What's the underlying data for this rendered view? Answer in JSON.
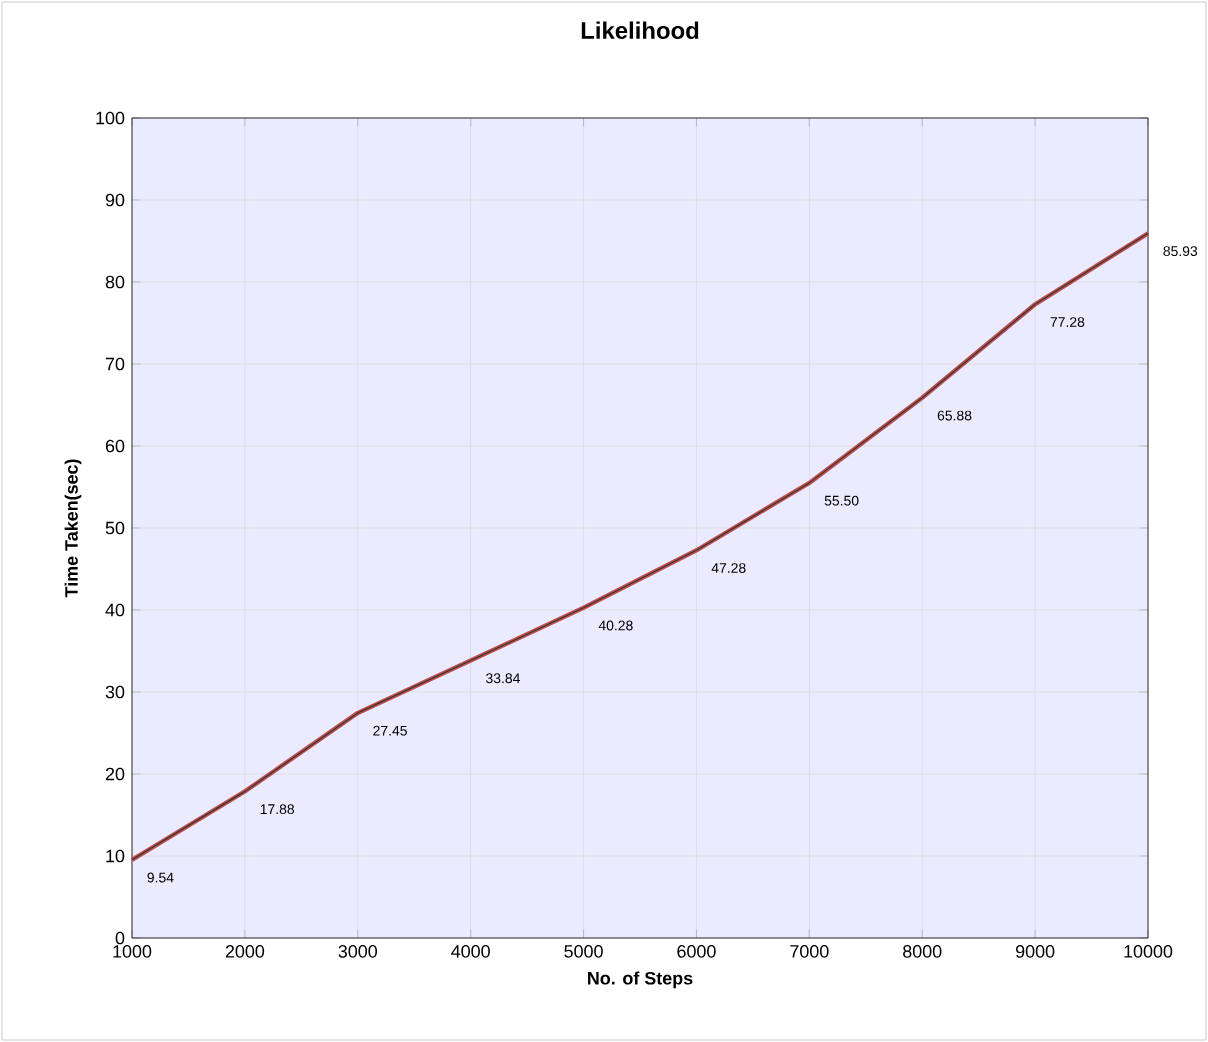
{
  "chart_data": {
    "type": "line",
    "title": "Likelihood",
    "xlabel": "No. of Steps",
    "ylabel": "Time Taken(sec)",
    "x": [
      1000,
      2000,
      3000,
      4000,
      5000,
      6000,
      7000,
      8000,
      9000,
      10000
    ],
    "series": [
      {
        "color": "#c0504d",
        "values": [
          9.54,
          17.88,
          27.45,
          33.84,
          40.28,
          47.28,
          55.5,
          65.88,
          77.28,
          85.93
        ],
        "value_labels": [
          "9.54",
          "17.88",
          "27.45",
          "33.84",
          "40.28",
          "47.28",
          "55.50",
          "65.88",
          "77.28",
          "85.93"
        ]
      }
    ],
    "xlim": [
      1000,
      10000
    ],
    "ylim": [
      0,
      100
    ],
    "xticks": [
      1000,
      2000,
      3000,
      4000,
      5000,
      6000,
      7000,
      8000,
      9000,
      10000
    ],
    "yticks": [
      0,
      10,
      20,
      30,
      40,
      50,
      60,
      70,
      80,
      90,
      100
    ],
    "grid": true,
    "marker": "none",
    "line_style": "solid"
  }
}
